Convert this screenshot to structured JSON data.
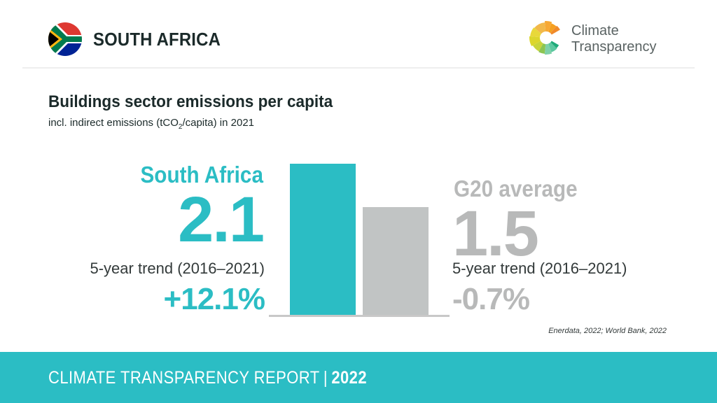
{
  "header": {
    "country": "SOUTH AFRICA",
    "flag_icon": "south-africa-flag-icon",
    "logo": {
      "icon": "climate-transparency-logo-icon",
      "line1": "Climate",
      "line2": "Transparency"
    }
  },
  "title": "Buildings sector emissions per capita",
  "subtitle": {
    "before": "incl. indirect emissions (tCO",
    "sub": "2",
    "after": "/capita) in 2021"
  },
  "left": {
    "label": "South Africa",
    "value": "2.1",
    "trend_label": "5-year trend (2016–2021)",
    "trend_value": "+12.1%"
  },
  "right": {
    "label": "G20 average",
    "value": "1.5",
    "trend_label": "5-year trend (2016–2021)",
    "trend_value": "-0.7%"
  },
  "source": "Enerdata, 2022; World Bank, 2022",
  "footer": {
    "text": "CLIMATE TRANSPARENCY REPORT",
    "separator": "|",
    "year": "2022"
  },
  "colors": {
    "accent": "#2bbdc4",
    "g20": "#c1c4c4",
    "g20_text": "#b8b9b9",
    "baseline": "#c8c8c8",
    "dark_text": "#1b2a2a"
  },
  "chart_data": {
    "type": "bar",
    "title": "Buildings sector emissions per capita",
    "subtitle": "incl. indirect emissions (tCO2/capita) in 2021",
    "categories": [
      "South Africa",
      "G20 average"
    ],
    "values": [
      2.1,
      1.5
    ],
    "unit": "tCO2/capita",
    "trend_5yr": [
      "+12.1%",
      "-0.7%"
    ],
    "colors": [
      "#2bbdc4",
      "#c1c4c4"
    ],
    "xlabel": "",
    "ylabel": "",
    "ylim": [
      0,
      2.1
    ],
    "grid": false,
    "legend": "none"
  }
}
